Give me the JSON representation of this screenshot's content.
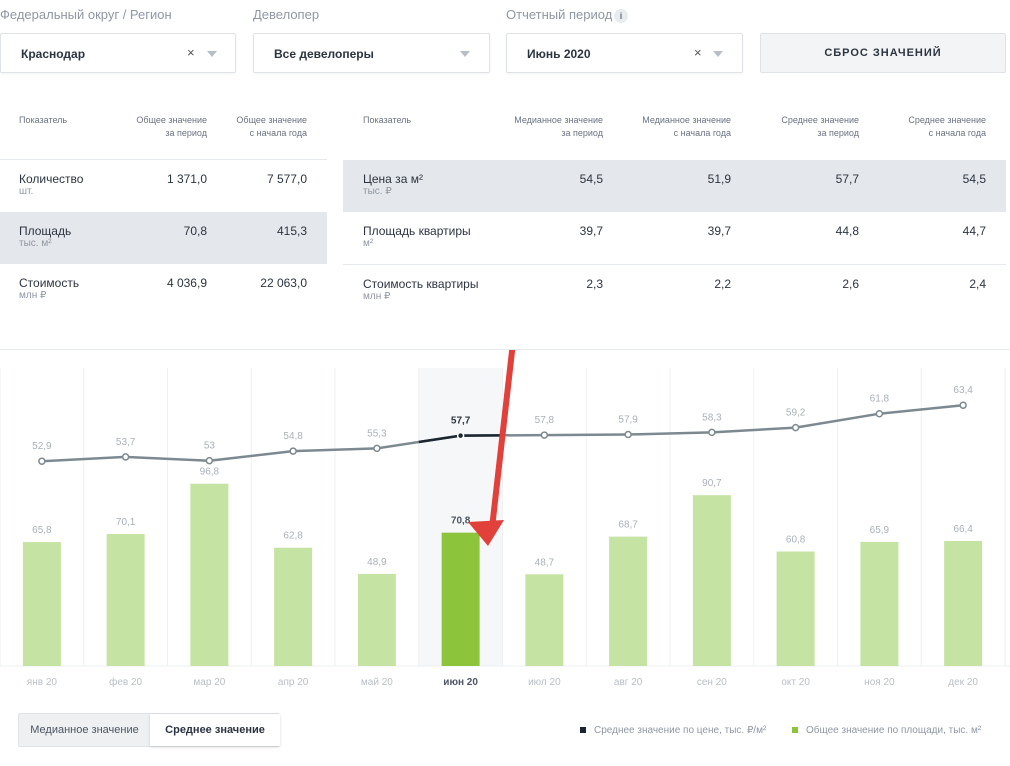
{
  "filters": {
    "region": {
      "label": "Федеральный округ / Регион",
      "value": "Краснодар",
      "clear": "×"
    },
    "developer": {
      "label": "Девелопер",
      "value": "Все девелоперы"
    },
    "period": {
      "label": "Отчетный период",
      "value": "Июнь 2020",
      "clear": "×",
      "info": "i"
    },
    "reset_label": "СБРОС ЗНАЧЕНИЙ"
  },
  "left_table": {
    "headers": {
      "indicator": "Показатель",
      "col1": [
        "Общее значение",
        "за период"
      ],
      "col2": [
        "Общее значение",
        "с начала года"
      ]
    },
    "rows": [
      {
        "label": "Количество",
        "unit": "шт.",
        "v1": "1 371,0",
        "v2": "7 577,0"
      },
      {
        "label": "Площадь",
        "unit": "тыс. м²",
        "v1": "70,8",
        "v2": "415,3"
      },
      {
        "label": "Стоимость",
        "unit": "млн ₽",
        "v1": "4 036,9",
        "v2": "22 063,0"
      }
    ]
  },
  "right_table": {
    "headers": {
      "indicator": "Показатель",
      "col1": [
        "Медианное значение",
        "за период"
      ],
      "col2": [
        "Медианное значение",
        "с начала года"
      ],
      "col3": [
        "Среднее значение",
        "за период"
      ],
      "col4": [
        "Среднее значение",
        "с начала года"
      ]
    },
    "rows": [
      {
        "label": "Цена за м²",
        "unit": "тыс. ₽",
        "v1": "54,5",
        "v2": "51,9",
        "v3": "57,7",
        "v4": "54,5"
      },
      {
        "label": "Площадь квартиры",
        "unit": "м²",
        "v1": "39,7",
        "v2": "39,7",
        "v3": "44,8",
        "v4": "44,7"
      },
      {
        "label": "Стоимость квартиры",
        "unit": "млн ₽",
        "v1": "2,3",
        "v2": "2,2",
        "v3": "2,6",
        "v4": "2,4"
      }
    ]
  },
  "chart_data": {
    "type": "bar",
    "categories": [
      "янв 20",
      "фев 20",
      "мар 20",
      "апр 20",
      "май 20",
      "июн 20",
      "июл 20",
      "авг 20",
      "сен 20",
      "окт 20",
      "ноя 20",
      "дек 20"
    ],
    "selected_index": 5,
    "series": [
      {
        "name": "Среднее значение по цене, тыс. ₽/м²",
        "type": "line",
        "values": [
          52.9,
          53.7,
          53,
          54.8,
          55.3,
          57.7,
          57.8,
          57.9,
          58.3,
          59.2,
          61.8,
          63.4
        ],
        "labels": [
          "52,9",
          "53,7",
          "53",
          "54,8",
          "55,3",
          "57,7",
          "57,8",
          "57,9",
          "58,3",
          "59,2",
          "61,8",
          "63,4"
        ],
        "color": "#7d8991"
      },
      {
        "name": "Общее значение по площади, тыс. м²",
        "type": "bar",
        "values": [
          65.8,
          70.1,
          96.8,
          62.8,
          48.9,
          70.8,
          48.7,
          68.7,
          90.7,
          60.8,
          65.9,
          66.4
        ],
        "labels": [
          "65,8",
          "70,1",
          "96,8",
          "62,8",
          "48,9",
          "70,8",
          "48,7",
          "68,7",
          "90,7",
          "60,8",
          "65,9",
          "66,4"
        ],
        "color": "#c5e3a3",
        "selected_color": "#8cc43c"
      }
    ],
    "bar_ylim": [
      0,
      120
    ],
    "line_ylim": [
      40,
      70
    ]
  },
  "toggle": {
    "median_label": "Медианное значение",
    "mean_label": "Среднее значение"
  },
  "legend": {
    "price": "Среднее значение по цене, тыс. ₽/м²",
    "area": "Общее значение по площади, тыс. м²"
  },
  "colors": {
    "line": "#7d8991",
    "line_selected": "#1c2630",
    "bar": "#c5e3a3",
    "bar_selected": "#8cc43c",
    "arrow": "#e2403a"
  }
}
